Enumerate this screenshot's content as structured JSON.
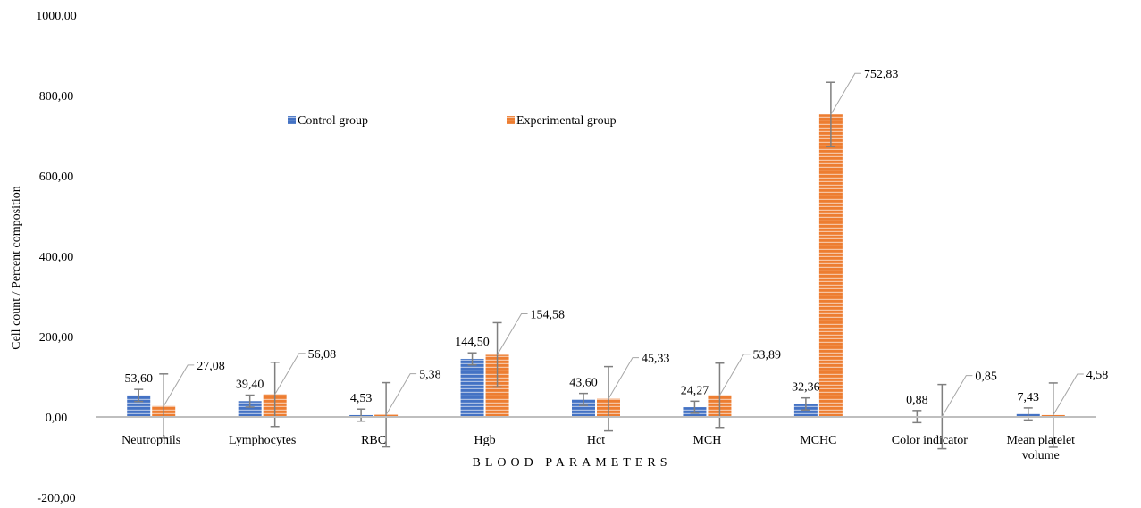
{
  "chart_data": {
    "type": "bar",
    "xlabel": "BLOOD PARAMETERS",
    "ylabel": "Cell count / Percent composition",
    "ylim": [
      -200,
      1000
    ],
    "yticks": [
      "-200,00",
      "0,00",
      "200,00",
      "400,00",
      "600,00",
      "800,00",
      "1000,00"
    ],
    "ytick_values": [
      -200,
      0,
      200,
      400,
      600,
      800,
      1000
    ],
    "categories": [
      [
        "Neutrophils"
      ],
      [
        "Lymphocytes"
      ],
      [
        "RBC"
      ],
      [
        "Hgb"
      ],
      [
        "Hct"
      ],
      [
        "MCH"
      ],
      [
        "MCHC"
      ],
      [
        "Color indicator"
      ],
      [
        "Mean platelet",
        "volume"
      ]
    ],
    "legend": {
      "position": "top-left"
    },
    "grid": false,
    "series": [
      {
        "name": "Control group",
        "color": "#4472C4",
        "values": [
          53.6,
          39.4,
          4.53,
          144.5,
          43.6,
          24.27,
          32.36,
          0.88,
          7.43
        ],
        "labels": [
          "53,60",
          "39,40",
          "4,53",
          "144,50",
          "43,60",
          "24,27",
          "32,36",
          "0,88",
          "7,43"
        ],
        "errors": [
          15,
          15,
          15,
          15,
          15,
          15,
          15,
          15,
          15
        ]
      },
      {
        "name": "Experimental group",
        "color": "#ED7D31",
        "values": [
          27.08,
          56.08,
          5.38,
          154.58,
          45.33,
          53.89,
          752.83,
          0.85,
          4.58
        ],
        "labels": [
          "27,08",
          "56,08",
          "5,38",
          "154,58",
          "45,33",
          "53,89",
          "752,83",
          "0,85",
          "4,58"
        ],
        "errors": [
          80,
          80,
          80,
          80,
          80,
          80,
          80,
          80,
          80
        ]
      }
    ]
  }
}
